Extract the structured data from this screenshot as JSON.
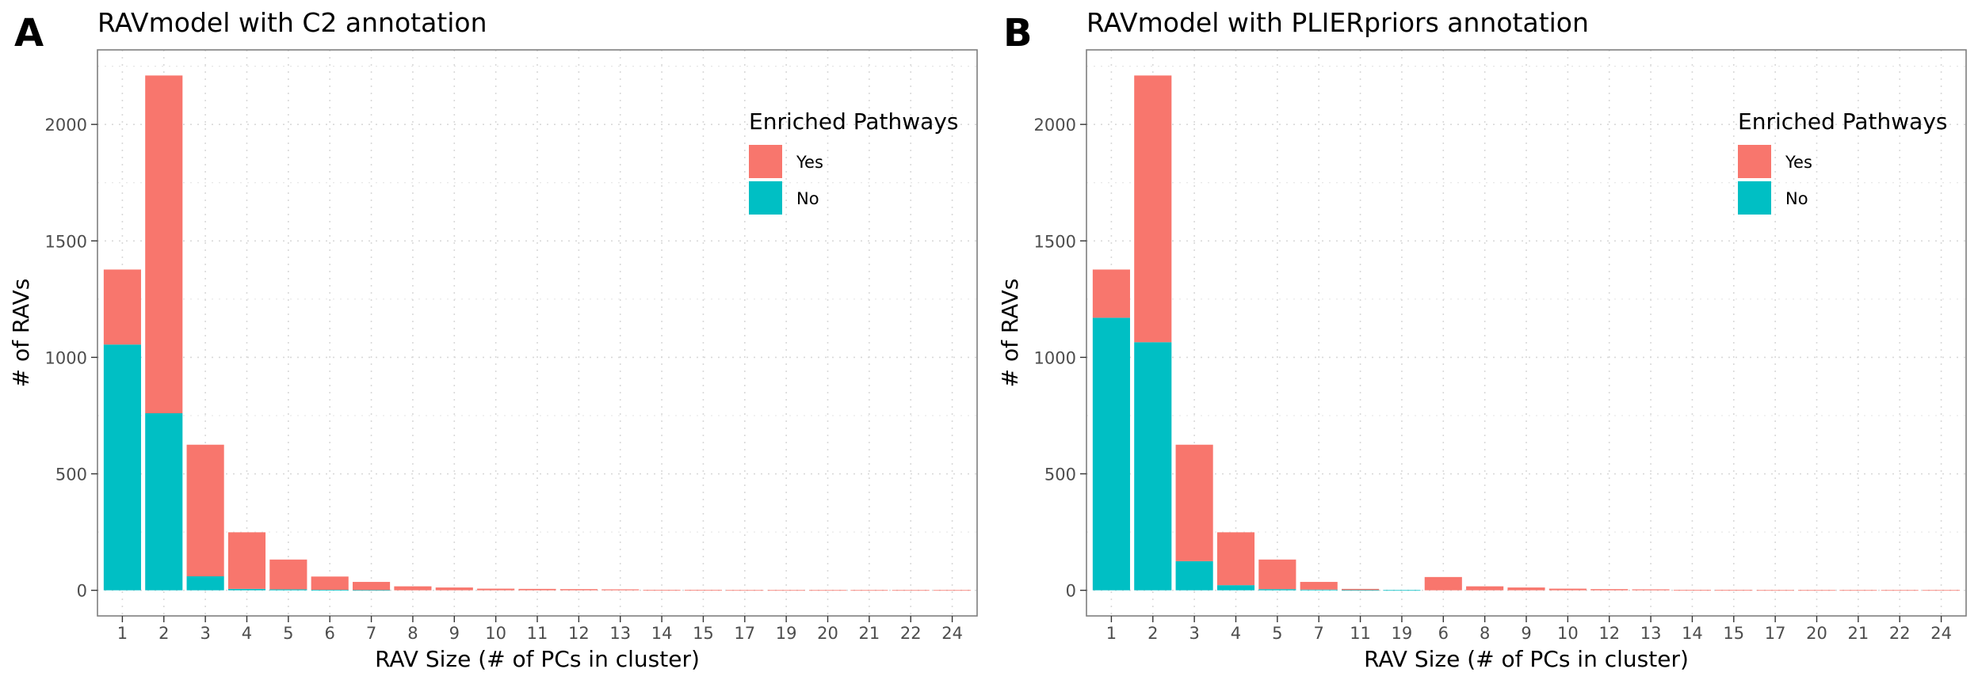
{
  "chart_data": [
    {
      "type": "bar",
      "panel_label": "A",
      "title": "RAVmodel with C2 annotation",
      "xlabel": "RAV Size (# of PCs in cluster)",
      "ylabel": "# of RAVs",
      "categories": [
        "1",
        "2",
        "3",
        "4",
        "5",
        "6",
        "7",
        "8",
        "9",
        "10",
        "11",
        "12",
        "13",
        "14",
        "15",
        "17",
        "19",
        "20",
        "21",
        "22",
        "24"
      ],
      "series": [
        {
          "name": "No",
          "color": "#00BFC4",
          "values": [
            1055,
            760,
            60,
            6,
            4,
            2,
            1,
            0,
            0,
            0,
            0,
            0,
            0,
            0,
            0,
            0,
            0,
            0,
            0,
            0,
            0
          ]
        },
        {
          "name": "Yes",
          "color": "#F8766D",
          "values": [
            322,
            1450,
            565,
            243,
            128,
            57,
            35,
            17,
            12,
            7,
            6,
            5,
            4,
            2,
            2,
            1,
            1,
            1,
            1,
            1,
            1
          ]
        }
      ],
      "stacked": true,
      "ylim": [
        -110,
        2320
      ],
      "yticks": [
        0,
        500,
        1000,
        1500,
        2000
      ],
      "grid": true,
      "legend": {
        "title": "Enriched Pathways",
        "position": "top-right",
        "entries": [
          "Yes",
          "No"
        ]
      }
    },
    {
      "type": "bar",
      "panel_label": "B",
      "title": "RAVmodel with PLIERpriors annotation",
      "xlabel": "RAV Size (# of PCs in cluster)",
      "ylabel": "# of RAVs",
      "categories": [
        "1",
        "2",
        "3",
        "4",
        "5",
        "7",
        "11",
        "19",
        "6",
        "8",
        "9",
        "10",
        "12",
        "13",
        "14",
        "15",
        "17",
        "20",
        "21",
        "22",
        "24"
      ],
      "series": [
        {
          "name": "No",
          "color": "#00BFC4",
          "values": [
            1170,
            1065,
            125,
            22,
            5,
            3,
            1,
            1,
            0,
            0,
            0,
            0,
            0,
            0,
            0,
            0,
            0,
            0,
            0,
            0,
            0
          ]
        },
        {
          "name": "Yes",
          "color": "#F8766D",
          "values": [
            207,
            1145,
            500,
            227,
            127,
            33,
            5,
            0,
            57,
            17,
            12,
            7,
            5,
            4,
            2,
            2,
            1,
            1,
            1,
            1,
            1
          ]
        }
      ],
      "stacked": true,
      "ylim": [
        -110,
        2320
      ],
      "yticks": [
        0,
        500,
        1000,
        1500,
        2000
      ],
      "grid": true,
      "legend": {
        "title": "Enriched Pathways",
        "position": "top-right",
        "entries": [
          "Yes",
          "No"
        ]
      }
    }
  ]
}
